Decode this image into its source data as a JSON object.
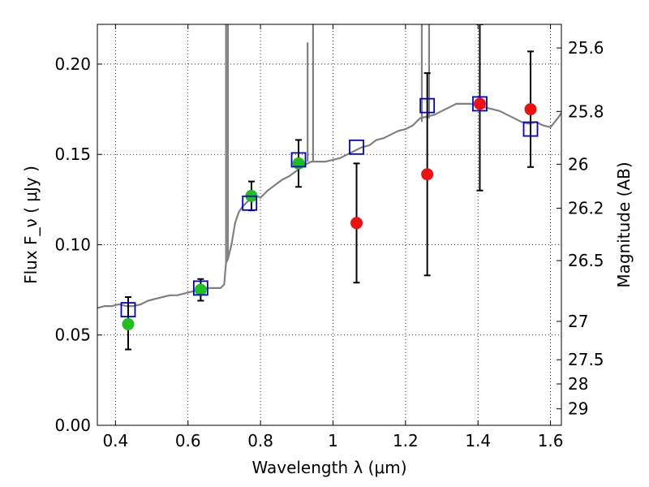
{
  "chart_data": {
    "type": "scatter",
    "xlabel": "Wavelength  λ (μm)",
    "ylabel": "Flux  F_ν  ( μJy )",
    "ylabel_right": "Magnitude (AB)",
    "xlim": [
      0.35,
      1.63
    ],
    "ylim": [
      0.0,
      0.222
    ],
    "grid": true,
    "x_ticks": [
      0.4,
      0.6,
      0.8,
      1.0,
      1.2,
      1.4,
      1.6
    ],
    "x_tick_labels": [
      "0.4",
      "0.6",
      "0.8",
      "1",
      "1.2",
      "1.4",
      "1.6"
    ],
    "y_ticks": [
      0.0,
      0.05,
      0.1,
      0.15,
      0.2
    ],
    "y_tick_labels": [
      "0.00",
      "0.05",
      "0.10",
      "0.15",
      "0.20"
    ],
    "right_ticks": [
      {
        "label": "25.6",
        "mag": 25.6
      },
      {
        "label": "25.8",
        "mag": 25.8
      },
      {
        "label": "26",
        "mag": 26.0
      },
      {
        "label": "26.2",
        "mag": 26.2
      },
      {
        "label": "26.5",
        "mag": 26.5
      },
      {
        "label": "27",
        "mag": 27.0
      },
      {
        "label": "27.5",
        "mag": 27.5
      },
      {
        "label": "28",
        "mag": 28.0
      },
      {
        "label": "29",
        "mag": 29.0
      }
    ],
    "colors": {
      "model": "#808080",
      "green": "#1fbf1f",
      "red": "#ee1111",
      "box": "#0000cc",
      "errorbar": "#000000"
    },
    "model_spectrum": {
      "x": [
        0.35,
        0.37,
        0.39,
        0.41,
        0.43,
        0.45,
        0.47,
        0.49,
        0.51,
        0.53,
        0.55,
        0.57,
        0.59,
        0.61,
        0.63,
        0.65,
        0.67,
        0.69,
        0.7,
        0.705,
        0.71,
        0.72,
        0.73,
        0.74,
        0.75,
        0.76,
        0.77,
        0.78,
        0.79,
        0.8,
        0.82,
        0.84,
        0.86,
        0.88,
        0.9,
        0.92,
        0.94,
        0.96,
        0.98,
        1.0,
        1.02,
        1.04,
        1.06,
        1.08,
        1.1,
        1.12,
        1.14,
        1.16,
        1.18,
        1.2,
        1.22,
        1.24,
        1.26,
        1.28,
        1.3,
        1.32,
        1.34,
        1.36,
        1.38,
        1.4,
        1.42,
        1.44,
        1.46,
        1.48,
        1.5,
        1.52,
        1.54,
        1.56,
        1.58,
        1.6,
        1.62,
        1.63
      ],
      "y": [
        0.065,
        0.066,
        0.066,
        0.067,
        0.066,
        0.066,
        0.067,
        0.069,
        0.07,
        0.071,
        0.072,
        0.072,
        0.073,
        0.074,
        0.075,
        0.076,
        0.076,
        0.076,
        0.078,
        0.09,
        0.092,
        0.1,
        0.112,
        0.118,
        0.121,
        0.123,
        0.125,
        0.126,
        0.127,
        0.126,
        0.13,
        0.133,
        0.136,
        0.138,
        0.141,
        0.144,
        0.146,
        0.146,
        0.146,
        0.147,
        0.148,
        0.15,
        0.152,
        0.154,
        0.155,
        0.158,
        0.159,
        0.161,
        0.163,
        0.164,
        0.166,
        0.17,
        0.171,
        0.172,
        0.174,
        0.176,
        0.178,
        0.178,
        0.178,
        0.177,
        0.176,
        0.175,
        0.174,
        0.172,
        0.17,
        0.168,
        0.167,
        0.168,
        0.166,
        0.165,
        0.17,
        0.173
      ]
    },
    "model_spikes": [
      {
        "x": 0.705,
        "from": 0.09,
        "to": 0.222
      },
      {
        "x": 0.71,
        "from": 0.092,
        "to": 0.222
      },
      {
        "x": 0.93,
        "from": 0.146,
        "to": 0.212
      },
      {
        "x": 0.945,
        "from": 0.146,
        "to": 0.222
      },
      {
        "x": 1.245,
        "from": 0.168,
        "to": 0.222
      },
      {
        "x": 1.265,
        "from": 0.17,
        "to": 0.222
      }
    ],
    "green_points": [
      {
        "x": 0.435,
        "y": 0.056
      },
      {
        "x": 0.635,
        "y": 0.075
      },
      {
        "x": 0.775,
        "y": 0.127
      },
      {
        "x": 0.905,
        "y": 0.145
      }
    ],
    "red_points": [
      {
        "x": 1.065,
        "y": 0.112
      },
      {
        "x": 1.26,
        "y": 0.139
      },
      {
        "x": 1.405,
        "y": 0.178
      },
      {
        "x": 1.545,
        "y": 0.175
      }
    ],
    "model_boxes": [
      {
        "x": 0.435,
        "y": 0.064
      },
      {
        "x": 0.635,
        "y": 0.076
      },
      {
        "x": 0.77,
        "y": 0.123
      },
      {
        "x": 0.905,
        "y": 0.147
      },
      {
        "x": 1.065,
        "y": 0.154
      },
      {
        "x": 1.26,
        "y": 0.177
      },
      {
        "x": 1.405,
        "y": 0.178
      },
      {
        "x": 1.545,
        "y": 0.164
      }
    ],
    "error_bars": [
      {
        "x": 0.435,
        "low": 0.042,
        "high": 0.071
      },
      {
        "x": 0.635,
        "low": 0.069,
        "high": 0.081
      },
      {
        "x": 0.775,
        "low": 0.119,
        "high": 0.135
      },
      {
        "x": 0.905,
        "low": 0.132,
        "high": 0.158
      },
      {
        "x": 1.065,
        "low": 0.079,
        "high": 0.145
      },
      {
        "x": 1.26,
        "low": 0.083,
        "high": 0.195
      },
      {
        "x": 1.405,
        "low": 0.13,
        "high": 0.222
      },
      {
        "x": 1.545,
        "low": 0.143,
        "high": 0.207
      }
    ]
  }
}
